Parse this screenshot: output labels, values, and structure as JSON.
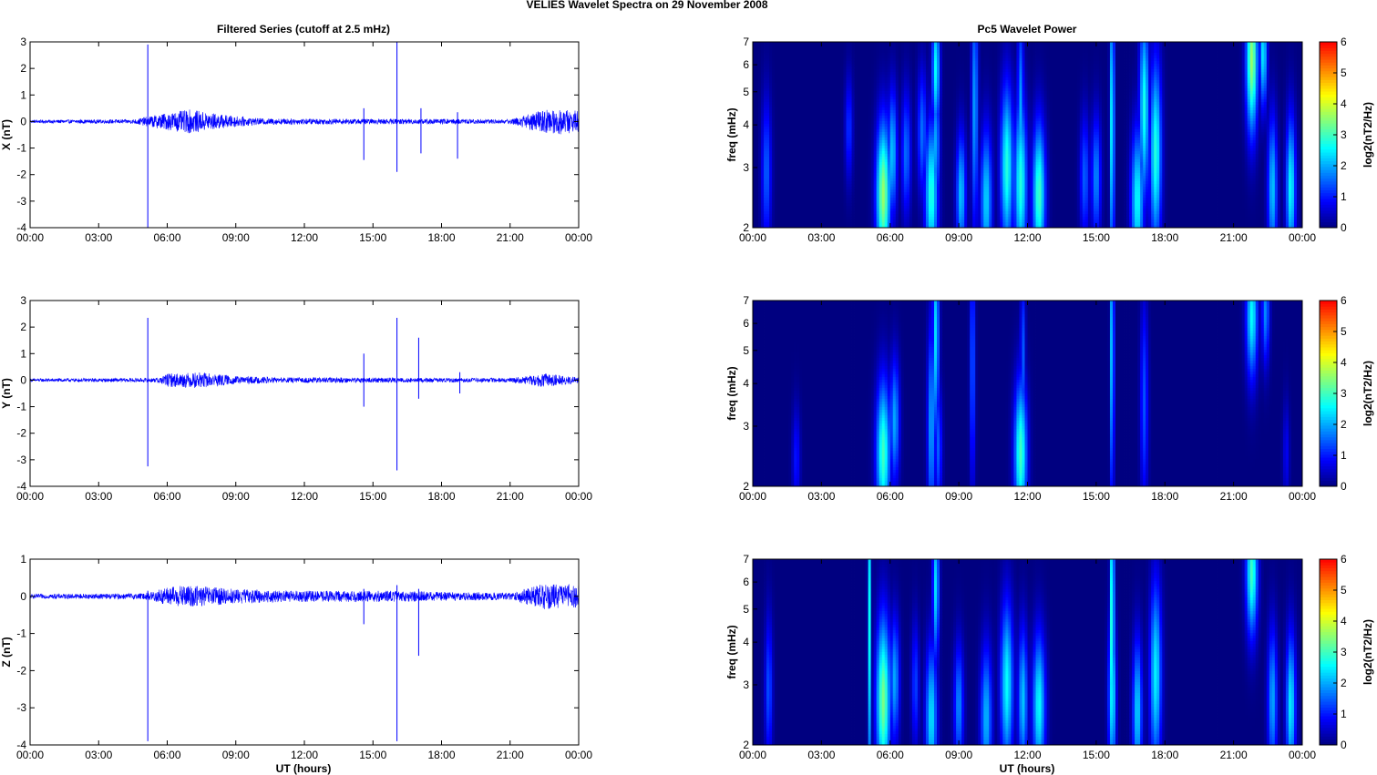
{
  "figure": {
    "title": "VELIES Wavelet Spectra on 29 November  2008",
    "left_title": "Filtered Series (cutoff at 2.5 mHz)",
    "right_title": "Pc5 Wavelet Power",
    "xlabel": "UT (hours)",
    "freq_label": "freq (mHz)",
    "colorbar_label": "log2(nT2/Hz)",
    "colorbar_ticks": [
      "0",
      "1",
      "2",
      "3",
      "4",
      "5",
      "6"
    ],
    "time_ticks": [
      "00:00",
      "03:00",
      "06:00",
      "09:00",
      "12:00",
      "15:00",
      "18:00",
      "21:00",
      "00:00"
    ],
    "series_color": "#0000ff"
  },
  "chart_data": [
    {
      "type": "line",
      "title": "Filtered Series (cutoff at 2.5 mHz)",
      "ylabel": "X (nT)",
      "xlabel": "",
      "xlim": [
        0,
        24
      ],
      "ylim": [
        -4,
        3
      ],
      "yticks": [
        -4,
        -3,
        -2,
        -1,
        0,
        1,
        2,
        3
      ],
      "noise_envelope": [
        [
          0,
          0.06
        ],
        [
          4.5,
          0.08
        ],
        [
          5.8,
          0.3
        ],
        [
          7,
          0.45
        ],
        [
          8.5,
          0.25
        ],
        [
          10,
          0.12
        ],
        [
          14,
          0.1
        ],
        [
          16,
          0.1
        ],
        [
          18,
          0.1
        ],
        [
          21,
          0.08
        ],
        [
          22,
          0.35
        ],
        [
          23,
          0.5
        ],
        [
          24,
          0.4
        ]
      ],
      "spikes": [
        [
          5.15,
          2.9,
          -4.0
        ],
        [
          14.6,
          0.5,
          -1.45
        ],
        [
          16.05,
          3.0,
          -1.9
        ],
        [
          17.1,
          0.5,
          -1.2
        ],
        [
          18.7,
          0.35,
          -1.4
        ]
      ]
    },
    {
      "type": "heatmap",
      "title": "Pc5 Wavelet Power",
      "ylabel": "freq (mHz)",
      "xlabel": "",
      "xlim": [
        0,
        24
      ],
      "ylim": [
        2,
        7
      ],
      "yscale": "log",
      "yticks": [
        2,
        3,
        4,
        5,
        6,
        7
      ],
      "colorbar": {
        "label": "log2(nT2/Hz)",
        "range": [
          0,
          6
        ],
        "colormap": "jet"
      },
      "blobs": [
        [
          0.6,
          2.9,
          0.15,
          0.35,
          1.5
        ],
        [
          4.2,
          3.9,
          0.12,
          0.25,
          1.2
        ],
        [
          5.7,
          2.5,
          0.22,
          0.35,
          3.6
        ],
        [
          6.1,
          3.3,
          0.15,
          0.3,
          2.2
        ],
        [
          6.7,
          3.3,
          0.15,
          0.3,
          1.6
        ],
        [
          7.4,
          3.8,
          0.15,
          0.3,
          1.6
        ],
        [
          7.8,
          2.5,
          0.2,
          0.35,
          2.8
        ],
        [
          8.0,
          5.8,
          0.12,
          0.3,
          2.6
        ],
        [
          8.0,
          3.5,
          0.12,
          0.3,
          2.0
        ],
        [
          9.1,
          2.5,
          0.15,
          0.3,
          2.2
        ],
        [
          9.7,
          4.5,
          0.1,
          0.6,
          2.0
        ],
        [
          10.2,
          2.4,
          0.18,
          0.35,
          2.3
        ],
        [
          11.1,
          3.0,
          0.2,
          0.4,
          2.8
        ],
        [
          11.7,
          2.7,
          0.2,
          0.4,
          2.8
        ],
        [
          11.7,
          4.2,
          0.1,
          0.5,
          2.0
        ],
        [
          12.5,
          2.5,
          0.2,
          0.35,
          3.0
        ],
        [
          14.5,
          2.8,
          0.15,
          0.3,
          1.5
        ],
        [
          15.0,
          2.8,
          0.15,
          0.3,
          1.8
        ],
        [
          15.7,
          4.0,
          0.07,
          0.7,
          2.8
        ],
        [
          16.8,
          2.4,
          0.2,
          0.35,
          2.6
        ],
        [
          17.1,
          4.5,
          0.15,
          0.45,
          2.7
        ],
        [
          17.6,
          3.3,
          0.18,
          0.45,
          2.8
        ],
        [
          21.8,
          6.2,
          0.18,
          0.35,
          3.6
        ],
        [
          22.3,
          6.4,
          0.12,
          0.25,
          2.5
        ],
        [
          22.7,
          2.6,
          0.15,
          0.35,
          2.2
        ],
        [
          23.5,
          2.6,
          0.15,
          0.35,
          2.6
        ]
      ]
    },
    {
      "type": "line",
      "title": "",
      "ylabel": "Y (nT)",
      "xlabel": "",
      "xlim": [
        0,
        24
      ],
      "ylim": [
        -4,
        3
      ],
      "yticks": [
        -4,
        -3,
        -2,
        -1,
        0,
        1,
        2,
        3
      ],
      "noise_envelope": [
        [
          0,
          0.06
        ],
        [
          5.5,
          0.08
        ],
        [
          6,
          0.25
        ],
        [
          7.5,
          0.3
        ],
        [
          9,
          0.15
        ],
        [
          11,
          0.1
        ],
        [
          14,
          0.1
        ],
        [
          18,
          0.08
        ],
        [
          21,
          0.08
        ],
        [
          22.5,
          0.25
        ],
        [
          24,
          0.12
        ]
      ],
      "spikes": [
        [
          5.15,
          2.35,
          -3.25
        ],
        [
          14.6,
          1.0,
          -1.0
        ],
        [
          16.05,
          2.35,
          -3.4
        ],
        [
          17.0,
          1.6,
          -0.7
        ],
        [
          18.8,
          0.3,
          -0.5
        ]
      ]
    },
    {
      "type": "heatmap",
      "title": "",
      "ylabel": "freq (mHz)",
      "xlabel": "",
      "xlim": [
        0,
        24
      ],
      "ylim": [
        2,
        7
      ],
      "yscale": "log",
      "yticks": [
        2,
        3,
        4,
        5,
        6,
        7
      ],
      "colorbar": {
        "label": "log2(nT2/Hz)",
        "range": [
          0,
          6
        ],
        "colormap": "jet"
      },
      "blobs": [
        [
          1.9,
          2.4,
          0.12,
          0.25,
          1.0
        ],
        [
          5.7,
          2.5,
          0.22,
          0.35,
          3.0
        ],
        [
          6.2,
          3.1,
          0.15,
          0.3,
          2.0
        ],
        [
          7.8,
          3.0,
          0.12,
          0.5,
          2.0
        ],
        [
          8.0,
          5.5,
          0.1,
          0.5,
          2.4
        ],
        [
          8.1,
          2.6,
          0.12,
          0.3,
          1.5
        ],
        [
          9.6,
          4.5,
          0.08,
          0.6,
          1.6
        ],
        [
          11.7,
          2.5,
          0.2,
          0.35,
          3.0
        ],
        [
          11.8,
          4.8,
          0.08,
          0.4,
          1.5
        ],
        [
          15.7,
          5.0,
          0.06,
          0.7,
          2.6
        ],
        [
          17.1,
          3.5,
          0.12,
          0.5,
          1.4
        ],
        [
          21.8,
          6.3,
          0.18,
          0.3,
          2.6
        ],
        [
          22.4,
          6.5,
          0.12,
          0.25,
          1.8
        ],
        [
          23.3,
          2.5,
          0.1,
          0.25,
          0.8
        ]
      ]
    },
    {
      "type": "line",
      "title": "",
      "ylabel": "Z (nT)",
      "xlabel": "UT (hours)",
      "xlim": [
        0,
        24
      ],
      "ylim": [
        -4,
        1
      ],
      "yticks": [
        -4,
        -3,
        -2,
        -1,
        0,
        1
      ],
      "noise_envelope": [
        [
          0,
          0.06
        ],
        [
          5,
          0.08
        ],
        [
          6,
          0.25
        ],
        [
          7,
          0.3
        ],
        [
          9,
          0.2
        ],
        [
          11,
          0.15
        ],
        [
          14,
          0.15
        ],
        [
          16,
          0.15
        ],
        [
          18,
          0.12
        ],
        [
          21,
          0.1
        ],
        [
          22.5,
          0.35
        ],
        [
          24,
          0.3
        ]
      ],
      "spikes": [
        [
          5.15,
          0.15,
          -3.9
        ],
        [
          14.6,
          0.2,
          -0.75
        ],
        [
          16.05,
          0.3,
          -3.9
        ],
        [
          17.0,
          0.2,
          -1.6
        ]
      ]
    },
    {
      "type": "heatmap",
      "title": "",
      "ylabel": "freq (mHz)",
      "xlabel": "UT (hours)",
      "xlim": [
        0,
        24
      ],
      "ylim": [
        2,
        7
      ],
      "yscale": "log",
      "yticks": [
        2,
        3,
        4,
        5,
        6,
        7
      ],
      "colorbar": {
        "label": "log2(nT2/Hz)",
        "range": [
          0,
          6
        ],
        "colormap": "jet"
      },
      "blobs": [
        [
          0.7,
          2.9,
          0.12,
          0.35,
          1.4
        ],
        [
          5.1,
          4.6,
          0.05,
          0.9,
          2.6
        ],
        [
          5.7,
          2.7,
          0.22,
          0.4,
          3.4
        ],
        [
          6.2,
          3.1,
          0.15,
          0.3,
          2.0
        ],
        [
          7.1,
          3.0,
          0.12,
          0.3,
          1.3
        ],
        [
          7.8,
          2.4,
          0.18,
          0.35,
          2.4
        ],
        [
          8.0,
          5.8,
          0.1,
          0.35,
          2.4
        ],
        [
          9.0,
          2.6,
          0.15,
          0.3,
          1.8
        ],
        [
          10.2,
          2.4,
          0.18,
          0.35,
          2.1
        ],
        [
          11.1,
          3.0,
          0.2,
          0.4,
          2.6
        ],
        [
          11.8,
          2.7,
          0.15,
          0.35,
          2.2
        ],
        [
          12.5,
          2.6,
          0.2,
          0.35,
          2.6
        ],
        [
          15.7,
          4.5,
          0.07,
          0.8,
          3.2
        ],
        [
          15.7,
          2.8,
          0.12,
          0.4,
          2.6
        ],
        [
          16.8,
          2.5,
          0.15,
          0.35,
          2.3
        ],
        [
          17.6,
          3.2,
          0.18,
          0.45,
          2.5
        ],
        [
          21.8,
          6.4,
          0.18,
          0.3,
          3.0
        ],
        [
          22.7,
          2.7,
          0.15,
          0.35,
          2.0
        ],
        [
          23.5,
          2.6,
          0.15,
          0.35,
          2.5
        ]
      ]
    }
  ]
}
